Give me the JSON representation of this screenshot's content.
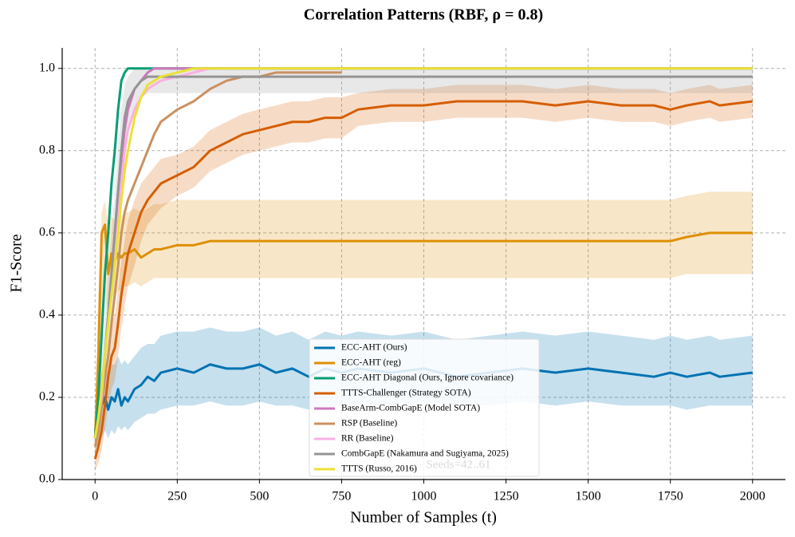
{
  "chart_data": {
    "type": "line",
    "title": "Correlation Patterns (RBF, ρ = 0.8)",
    "xlabel": "Number of Samples (t)",
    "ylabel": "F1-Score",
    "annotation": "Seeds=42..61",
    "xlim": [
      -100,
      2100
    ],
    "ylim": [
      0,
      1.05
    ],
    "xticks": [
      0,
      250,
      500,
      750,
      1000,
      1250,
      1500,
      1750,
      2000
    ],
    "yticks": [
      {
        "value": 0,
        "label": "0.0"
      },
      0.2,
      0.4,
      0.6,
      0.8,
      {
        "value": 1,
        "label": "1.0"
      }
    ],
    "grid": true,
    "legend": "lower center",
    "x": [
      0,
      10,
      20,
      30,
      40,
      50,
      60,
      70,
      80,
      90,
      100,
      120,
      140,
      160,
      180,
      200,
      250,
      300,
      350,
      400,
      450,
      500,
      550,
      600,
      650,
      700,
      750,
      800,
      900,
      1000,
      1100,
      1200,
      1300,
      1400,
      1500,
      1600,
      1700,
      1750,
      1800,
      1870,
      1900,
      2000
    ],
    "series": [
      {
        "name": "ECC-AHT (Ours)",
        "color": "#0173b2",
        "values": [
          0.12,
          0.15,
          0.18,
          0.2,
          0.17,
          0.2,
          0.19,
          0.22,
          0.18,
          0.2,
          0.19,
          0.22,
          0.23,
          0.25,
          0.24,
          0.26,
          0.27,
          0.26,
          0.28,
          0.27,
          0.27,
          0.28,
          0.26,
          0.27,
          0.25,
          0.27,
          0.26,
          0.27,
          0.26,
          0.27,
          0.25,
          0.26,
          0.27,
          0.26,
          0.27,
          0.26,
          0.25,
          0.26,
          0.25,
          0.26,
          0.25,
          0.26
        ],
        "lower": [
          0.08,
          0.08,
          0.1,
          0.12,
          0.1,
          0.12,
          0.11,
          0.13,
          0.12,
          0.13,
          0.12,
          0.14,
          0.15,
          0.16,
          0.16,
          0.17,
          0.18,
          0.18,
          0.19,
          0.18,
          0.18,
          0.19,
          0.18,
          0.18,
          0.17,
          0.18,
          0.18,
          0.18,
          0.18,
          0.19,
          0.18,
          0.18,
          0.19,
          0.18,
          0.19,
          0.18,
          0.18,
          0.18,
          0.17,
          0.18,
          0.18,
          0.18
        ],
        "upper": [
          0.16,
          0.22,
          0.26,
          0.28,
          0.26,
          0.28,
          0.28,
          0.3,
          0.28,
          0.29,
          0.28,
          0.3,
          0.32,
          0.33,
          0.33,
          0.35,
          0.36,
          0.36,
          0.37,
          0.36,
          0.36,
          0.37,
          0.35,
          0.36,
          0.34,
          0.36,
          0.35,
          0.36,
          0.35,
          0.36,
          0.34,
          0.35,
          0.36,
          0.35,
          0.36,
          0.35,
          0.34,
          0.35,
          0.34,
          0.35,
          0.34,
          0.35
        ]
      },
      {
        "name": "ECC-AHT (reg)",
        "color": "#de8f05",
        "values": [
          0.1,
          0.3,
          0.6,
          0.62,
          0.5,
          0.55,
          0.53,
          0.55,
          0.54,
          0.55,
          0.55,
          0.56,
          0.54,
          0.55,
          0.56,
          0.56,
          0.57,
          0.57,
          0.58,
          0.58,
          0.58,
          0.58,
          0.58,
          0.58,
          0.58,
          0.58,
          0.58,
          0.58,
          0.58,
          0.58,
          0.58,
          0.58,
          0.58,
          0.58,
          0.58,
          0.58,
          0.58,
          0.58,
          0.59,
          0.6,
          0.6,
          0.6
        ],
        "lower": [
          0.05,
          0.15,
          0.4,
          0.45,
          0.4,
          0.45,
          0.44,
          0.46,
          0.46,
          0.47,
          0.47,
          0.48,
          0.47,
          0.48,
          0.49,
          0.49,
          0.49,
          0.49,
          0.49,
          0.49,
          0.49,
          0.49,
          0.49,
          0.49,
          0.49,
          0.49,
          0.49,
          0.49,
          0.49,
          0.49,
          0.49,
          0.49,
          0.49,
          0.49,
          0.49,
          0.49,
          0.49,
          0.49,
          0.5,
          0.5,
          0.5,
          0.5
        ],
        "upper": [
          0.15,
          0.45,
          0.65,
          0.68,
          0.62,
          0.64,
          0.63,
          0.65,
          0.64,
          0.65,
          0.65,
          0.66,
          0.65,
          0.66,
          0.67,
          0.67,
          0.68,
          0.68,
          0.68,
          0.68,
          0.68,
          0.68,
          0.68,
          0.68,
          0.68,
          0.68,
          0.68,
          0.68,
          0.68,
          0.68,
          0.68,
          0.68,
          0.68,
          0.68,
          0.68,
          0.68,
          0.68,
          0.68,
          0.69,
          0.7,
          0.7,
          0.7
        ]
      },
      {
        "name": "ECC-AHT Diagonal (Ours, Ignore covariance)",
        "color": "#029e73",
        "values": [
          0.1,
          0.2,
          0.35,
          0.5,
          0.6,
          0.72,
          0.8,
          0.9,
          0.97,
          0.99,
          1.0,
          1.0,
          1.0,
          1.0,
          1.0,
          1.0,
          1.0,
          1.0,
          1.0,
          1.0,
          1.0,
          1.0,
          1.0,
          1.0,
          1.0,
          1.0,
          1.0,
          1.0,
          1.0,
          1.0,
          1.0,
          1.0,
          1.0,
          1.0,
          1.0,
          1.0,
          1.0,
          1.0,
          1.0,
          1.0,
          1.0,
          1.0
        ]
      },
      {
        "name": "TTTS-Challenger (Strategy SOTA)",
        "color": "#d55e00",
        "values": [
          0.05,
          0.08,
          0.12,
          0.18,
          0.25,
          0.3,
          0.32,
          0.38,
          0.45,
          0.5,
          0.55,
          0.6,
          0.65,
          0.68,
          0.7,
          0.72,
          0.74,
          0.76,
          0.8,
          0.82,
          0.84,
          0.85,
          0.86,
          0.87,
          0.87,
          0.88,
          0.88,
          0.9,
          0.91,
          0.91,
          0.92,
          0.92,
          0.92,
          0.91,
          0.92,
          0.91,
          0.91,
          0.9,
          0.91,
          0.92,
          0.91,
          0.92
        ],
        "lower": [
          0.02,
          0.04,
          0.07,
          0.12,
          0.18,
          0.22,
          0.24,
          0.3,
          0.37,
          0.42,
          0.47,
          0.52,
          0.58,
          0.62,
          0.64,
          0.66,
          0.69,
          0.71,
          0.75,
          0.77,
          0.79,
          0.8,
          0.81,
          0.82,
          0.82,
          0.83,
          0.83,
          0.86,
          0.87,
          0.87,
          0.88,
          0.88,
          0.88,
          0.87,
          0.88,
          0.87,
          0.87,
          0.86,
          0.87,
          0.88,
          0.87,
          0.88
        ],
        "upper": [
          0.08,
          0.12,
          0.18,
          0.24,
          0.32,
          0.38,
          0.4,
          0.46,
          0.53,
          0.58,
          0.63,
          0.68,
          0.72,
          0.74,
          0.76,
          0.78,
          0.79,
          0.81,
          0.85,
          0.87,
          0.89,
          0.9,
          0.91,
          0.92,
          0.92,
          0.93,
          0.93,
          0.94,
          0.95,
          0.95,
          0.96,
          0.96,
          0.96,
          0.95,
          0.96,
          0.95,
          0.95,
          0.94,
          0.95,
          0.96,
          0.95,
          0.96
        ]
      },
      {
        "name": "BaseArm-CombGapE (Model SOTA)",
        "color": "#cc78bc",
        "values": [
          0.1,
          0.15,
          0.2,
          0.3,
          0.4,
          0.5,
          0.6,
          0.7,
          0.78,
          0.85,
          0.9,
          0.95,
          0.97,
          0.99,
          1.0,
          1.0,
          1.0,
          1.0,
          1.0,
          1.0,
          1.0,
          1.0,
          1.0,
          1.0,
          1.0,
          1.0,
          1.0,
          1.0,
          1.0,
          1.0,
          1.0,
          1.0,
          1.0,
          1.0,
          1.0,
          1.0,
          1.0,
          1.0,
          1.0,
          1.0,
          1.0,
          1.0
        ]
      },
      {
        "name": "RSP (Baseline)",
        "color": "#ca9161",
        "values": [
          0.08,
          0.12,
          0.18,
          0.25,
          0.3,
          0.38,
          0.45,
          0.52,
          0.6,
          0.65,
          0.68,
          0.72,
          0.76,
          0.8,
          0.84,
          0.87,
          0.9,
          0.92,
          0.95,
          0.97,
          0.98,
          0.98,
          0.99,
          0.99,
          0.99,
          0.99,
          0.99,
          null,
          null,
          null,
          null,
          null,
          null,
          null,
          null,
          null,
          null,
          null,
          null,
          null,
          null,
          null
        ]
      },
      {
        "name": "RR (Baseline)",
        "color": "#fbafe4",
        "values": [
          0.1,
          0.15,
          0.2,
          0.3,
          0.4,
          0.5,
          0.58,
          0.65,
          0.72,
          0.8,
          0.85,
          0.9,
          0.93,
          0.95,
          0.96,
          0.97,
          0.98,
          0.99,
          1.0,
          null,
          null,
          null,
          null,
          null,
          null,
          null,
          null,
          null,
          null,
          null,
          null,
          null,
          null,
          null,
          null,
          null,
          null,
          null,
          null,
          null,
          null,
          null
        ]
      },
      {
        "name": "CombGapE (Nakamura and Sugiyama, 2025)",
        "color": "#949494",
        "values": [
          0.1,
          0.15,
          0.22,
          0.3,
          0.4,
          0.5,
          0.6,
          0.7,
          0.8,
          0.88,
          0.92,
          0.95,
          0.97,
          0.98,
          0.98,
          0.98,
          0.98,
          0.98,
          0.98,
          0.98,
          0.98,
          0.98,
          0.98,
          0.98,
          0.98,
          0.98,
          0.98,
          0.98,
          0.98,
          0.98,
          0.98,
          0.98,
          0.98,
          0.98,
          0.98,
          0.98,
          0.98,
          0.98,
          0.98,
          0.98,
          0.98,
          0.98
        ],
        "lower": [
          0.06,
          0.1,
          0.15,
          0.22,
          0.3,
          0.4,
          0.5,
          0.6,
          0.7,
          0.8,
          0.86,
          0.9,
          0.93,
          0.94,
          0.94,
          0.94,
          0.94,
          0.94,
          0.94,
          0.94,
          0.94,
          0.94,
          0.94,
          0.94,
          0.94,
          0.94,
          0.94,
          0.94,
          0.94,
          0.94,
          0.94,
          0.94,
          0.94,
          0.94,
          0.94,
          0.94,
          0.94,
          0.94,
          0.94,
          0.94,
          0.94,
          0.94
        ],
        "upper": [
          0.14,
          0.2,
          0.29,
          0.38,
          0.5,
          0.6,
          0.7,
          0.8,
          0.9,
          0.96,
          0.98,
          1.0,
          1.0,
          1.0,
          1.0,
          1.0,
          1.0,
          1.0,
          1.0,
          1.0,
          1.0,
          1.0,
          1.0,
          1.0,
          1.0,
          1.0,
          1.0,
          1.0,
          1.0,
          1.0,
          1.0,
          1.0,
          1.0,
          1.0,
          1.0,
          1.0,
          1.0,
          1.0,
          1.0,
          1.0,
          1.0,
          1.0
        ]
      },
      {
        "name": "TTTS (Russo, 2016)",
        "color": "#ece133",
        "values": [
          0.1,
          0.15,
          0.22,
          0.3,
          0.38,
          0.45,
          0.52,
          0.6,
          0.68,
          0.75,
          0.8,
          0.88,
          0.93,
          0.96,
          0.97,
          0.98,
          0.99,
          1.0,
          1.0,
          1.0,
          1.0,
          1.0,
          1.0,
          1.0,
          1.0,
          1.0,
          1.0,
          1.0,
          1.0,
          1.0,
          1.0,
          1.0,
          1.0,
          1.0,
          1.0,
          1.0,
          1.0,
          1.0,
          1.0,
          1.0,
          1.0,
          1.0
        ]
      }
    ]
  }
}
